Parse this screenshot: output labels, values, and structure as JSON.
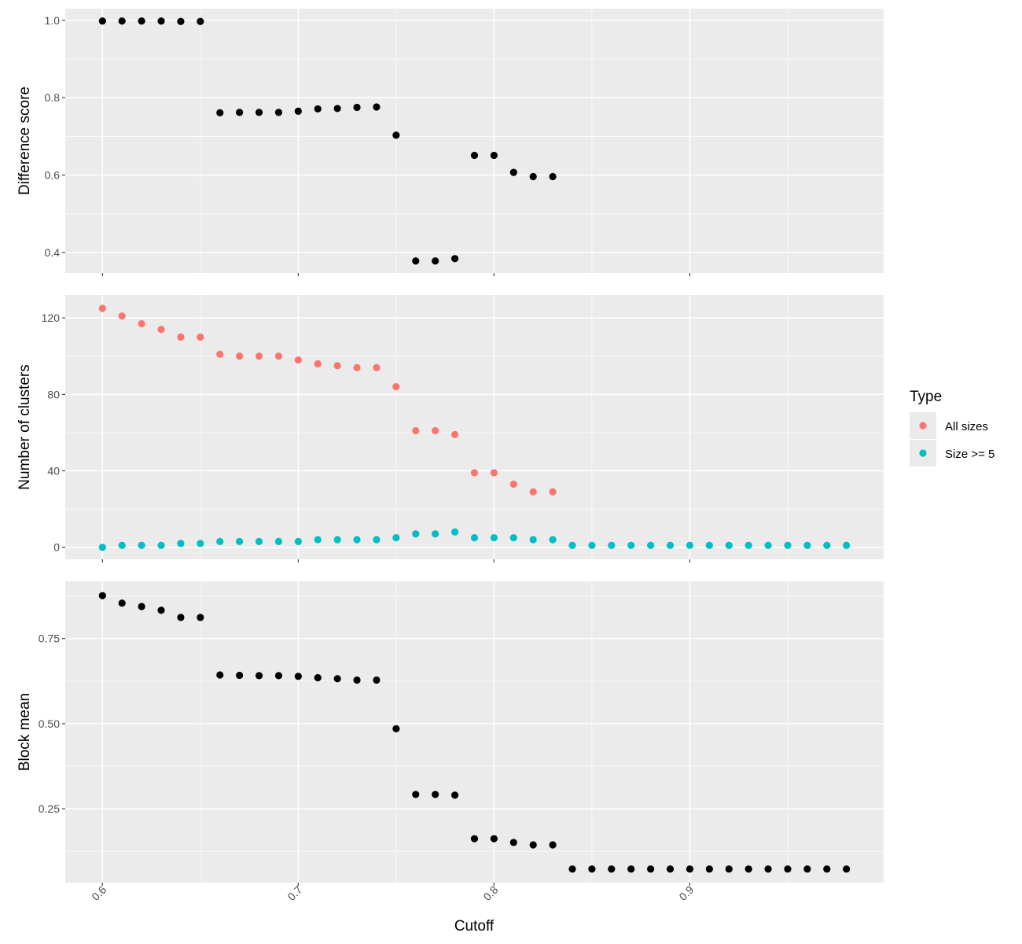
{
  "x_axis": {
    "label": "Cutoff",
    "ticks": [
      0.6,
      0.7,
      0.8,
      0.9
    ],
    "tick_labels": [
      "0.6",
      "0.7",
      "0.8",
      "0.9"
    ],
    "range": [
      0.581,
      0.999
    ]
  },
  "legend": {
    "title": "Type",
    "placement": "right",
    "entries": [
      {
        "label": "All sizes",
        "color": "#F8766D"
      },
      {
        "label": "Size >= 5",
        "color": "#00BFC4"
      }
    ]
  },
  "colors": {
    "panel_bg": "#EBEBEB",
    "grid": "#FFFFFF",
    "point_default": "#000000"
  },
  "chart_data": [
    {
      "type": "scatter",
      "ylabel": "Difference score",
      "ylim": [
        0.347,
        1.03
      ],
      "yticks": [
        0.4,
        0.6,
        0.8,
        1.0
      ],
      "ytick_labels": [
        "0.4",
        "0.6",
        "0.8",
        "1.0"
      ],
      "grid": true,
      "series": [
        {
          "color": "#000000",
          "x": [
            0.6,
            0.61,
            0.62,
            0.63,
            0.64,
            0.65,
            0.66,
            0.67,
            0.68,
            0.69,
            0.7,
            0.71,
            0.72,
            0.73,
            0.74,
            0.75,
            0.76,
            0.77,
            0.78,
            0.79,
            0.8,
            0.81,
            0.82,
            0.83
          ],
          "y": [
            0.998,
            0.998,
            0.998,
            0.998,
            0.997,
            0.997,
            0.761,
            0.762,
            0.762,
            0.762,
            0.765,
            0.771,
            0.772,
            0.775,
            0.776,
            0.703,
            0.378,
            0.378,
            0.384,
            0.651,
            0.651,
            0.607,
            0.596,
            0.596
          ]
        }
      ]
    },
    {
      "type": "scatter",
      "ylabel": "Number of clusters",
      "ylim": [
        -6.3,
        132
      ],
      "yticks": [
        0,
        40,
        80,
        120
      ],
      "ytick_labels": [
        "0",
        "40",
        "80",
        "120"
      ],
      "grid": true,
      "series": [
        {
          "name": "All sizes",
          "color": "#F8766D",
          "x": [
            0.6,
            0.61,
            0.62,
            0.63,
            0.64,
            0.65,
            0.66,
            0.67,
            0.68,
            0.69,
            0.7,
            0.71,
            0.72,
            0.73,
            0.74,
            0.75,
            0.76,
            0.77,
            0.78,
            0.79,
            0.8,
            0.81,
            0.82,
            0.83
          ],
          "y": [
            125,
            121,
            117,
            114,
            110,
            110,
            101,
            100,
            100,
            100,
            98,
            96,
            95,
            94,
            94,
            84,
            61,
            61,
            59,
            39,
            39,
            33,
            29,
            29
          ]
        },
        {
          "name": "Size >= 5",
          "color": "#00BFC4",
          "x": [
            0.6,
            0.61,
            0.62,
            0.63,
            0.64,
            0.65,
            0.66,
            0.67,
            0.68,
            0.69,
            0.7,
            0.71,
            0.72,
            0.73,
            0.74,
            0.75,
            0.76,
            0.77,
            0.78,
            0.79,
            0.8,
            0.81,
            0.82,
            0.83,
            0.84,
            0.85,
            0.86,
            0.87,
            0.88,
            0.89,
            0.9,
            0.91,
            0.92,
            0.93,
            0.94,
            0.95,
            0.96,
            0.97,
            0.98
          ],
          "y": [
            0,
            1,
            1,
            1,
            2,
            2,
            3,
            3,
            3,
            3,
            3,
            4,
            4,
            4,
            4,
            5,
            7,
            7,
            8,
            5,
            5,
            5,
            4,
            4,
            1,
            1,
            1,
            1,
            1,
            1,
            1,
            1,
            1,
            1,
            1,
            1,
            1,
            1,
            1
          ]
        }
      ]
    },
    {
      "type": "scatter",
      "ylabel": "Block mean",
      "ylim": [
        0.033,
        0.918
      ],
      "yticks": [
        0.25,
        0.5,
        0.75
      ],
      "ytick_labels": [
        "0.25",
        "0.50",
        "0.75"
      ],
      "grid": true,
      "series": [
        {
          "color": "#000000",
          "x": [
            0.6,
            0.61,
            0.62,
            0.63,
            0.64,
            0.65,
            0.66,
            0.67,
            0.68,
            0.69,
            0.7,
            0.71,
            0.72,
            0.73,
            0.74,
            0.75,
            0.76,
            0.77,
            0.78,
            0.79,
            0.8,
            0.81,
            0.82,
            0.83,
            0.84,
            0.85,
            0.86,
            0.87,
            0.88,
            0.89,
            0.9,
            0.91,
            0.92,
            0.93,
            0.94,
            0.95,
            0.96,
            0.97,
            0.98
          ],
          "y": [
            0.876,
            0.854,
            0.844,
            0.833,
            0.812,
            0.812,
            0.643,
            0.642,
            0.641,
            0.641,
            0.639,
            0.635,
            0.632,
            0.628,
            0.628,
            0.485,
            0.292,
            0.292,
            0.29,
            0.162,
            0.162,
            0.151,
            0.144,
            0.144,
            0.073,
            0.073,
            0.073,
            0.073,
            0.073,
            0.073,
            0.073,
            0.073,
            0.073,
            0.073,
            0.073,
            0.073,
            0.073,
            0.073,
            0.073
          ]
        }
      ]
    }
  ]
}
